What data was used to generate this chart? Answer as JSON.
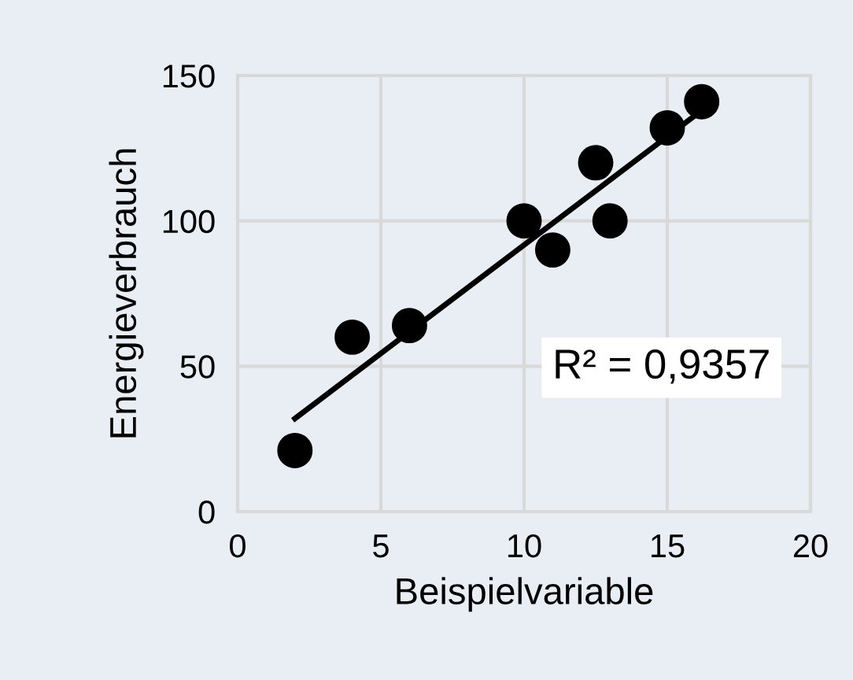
{
  "chart_data": {
    "type": "scatter",
    "xlabel": "Beispielvariable",
    "ylabel": "Energieverbrauch",
    "xlim": [
      0,
      20
    ],
    "xticks": [
      0,
      5,
      10,
      15,
      20
    ],
    "ylim": [
      0,
      150
    ],
    "yticks": [
      0,
      50,
      100,
      150
    ],
    "grid": true,
    "marker": "circle",
    "annotations": [
      "R² = 0,9357"
    ],
    "series": [
      {
        "color": "#000000",
        "x": [
          2,
          4,
          6,
          10,
          11,
          12.5,
          13,
          15,
          16.2
        ],
        "values": [
          21,
          60,
          64,
          100,
          90,
          120,
          100,
          132,
          141
        ]
      },
      {
        "type": "line",
        "color": "#000000",
        "x": [
          2,
          16.2
        ],
        "values": [
          32,
          138
        ],
        "marker": "none"
      }
    ]
  }
}
